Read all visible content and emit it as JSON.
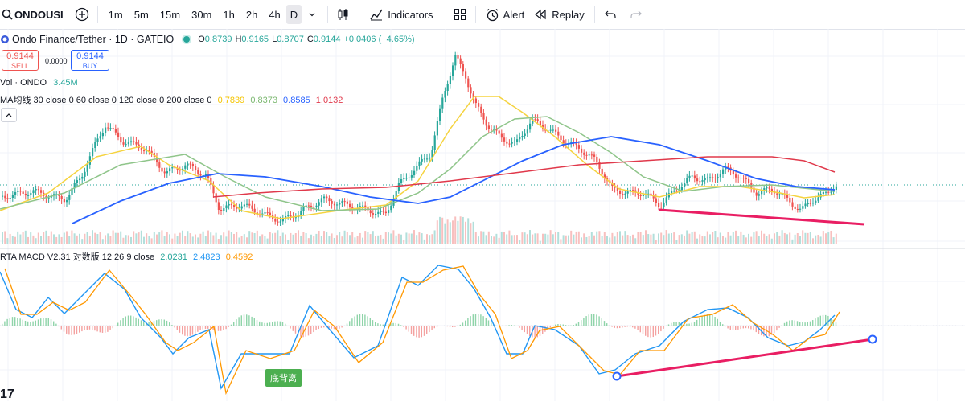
{
  "toolbar": {
    "symbol": "ONDOUSI",
    "intervals": [
      "1m",
      "5m",
      "15m",
      "30m",
      "1h",
      "2h",
      "4h",
      "D"
    ],
    "indicators_label": "Indicators",
    "alert_label": "Alert",
    "replay_label": "Replay"
  },
  "legend": {
    "title": "Ondo Finance/Tether · 1D · GATEIO",
    "o_label": "O",
    "o": "0.8739",
    "h_label": "H",
    "h": "0.9165",
    "l_label": "L",
    "l": "0.8707",
    "c_label": "C",
    "c": "0.9144",
    "change": "+0.0406 (+4.65%)",
    "sell_price": "0.9144",
    "sell_label": "SELL",
    "spread": "0.0000",
    "buy_price": "0.9144",
    "buy_label": "BUY",
    "vol_label": "Vol · ONDO",
    "vol_value": "3.45M",
    "ma_label": "MA均线 30 close 0 60 close 0 120 close 0 200 close 0",
    "ma_values": [
      "0.7839",
      "0.8373",
      "0.8585",
      "1.0132"
    ],
    "macd_label": "RTA MACD V2.31 对数版 12 26 9 close",
    "macd_values": [
      "2.0231",
      "2.4823",
      "0.4592"
    ],
    "annotation": "底背离"
  },
  "colors": {
    "up": "#26a69a",
    "down": "#ef5350",
    "ma30": "#f5d33f",
    "ma60": "#8fc58a",
    "ma120": "#2962ff",
    "ma200": "#e0394b",
    "macd": "#2196f3",
    "signal": "#ff9800",
    "trendline": "#e91e63"
  },
  "chart_data": {
    "type": "candlestick",
    "description_series": [
      {
        "name": "MA 30",
        "value": 0.7839
      },
      {
        "name": "MA 60",
        "value": 0.8373
      },
      {
        "name": "MA 120",
        "value": 0.8585
      },
      {
        "name": "MA 200",
        "value": 1.0132
      }
    ],
    "last": {
      "open": 0.8739,
      "high": 0.9165,
      "low": 0.8707,
      "close": 0.9144
    }
  }
}
